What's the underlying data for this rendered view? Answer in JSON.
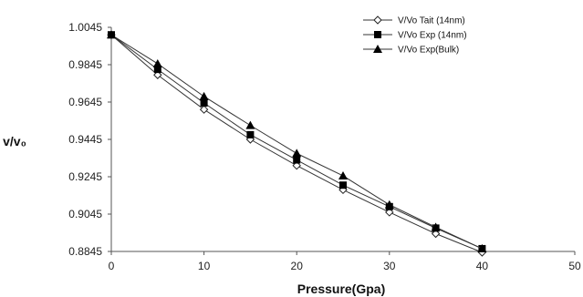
{
  "chart_data": {
    "type": "line",
    "title": "",
    "xlabel": "Pressure(Gpa)",
    "ylabel": "v/v₀",
    "xlim": [
      0,
      50
    ],
    "ylim": [
      0.8845,
      1.0045
    ],
    "xticks": [
      "0",
      "10",
      "20",
      "30",
      "40",
      "50"
    ],
    "yticks": [
      "1.0045",
      "0.9845",
      "0.9645",
      "0.9445",
      "0.9245",
      "0.9045",
      "0.8845"
    ],
    "grid": false,
    "legend_position": "top-right",
    "series": [
      {
        "name": "V/Vo Tait (14nm)",
        "marker": "diamond-open",
        "x": [
          0,
          5,
          10,
          15,
          20,
          25,
          30,
          35,
          40
        ],
        "y": [
          1.0005,
          0.979,
          0.9605,
          0.9445,
          0.9305,
          0.9175,
          0.9055,
          0.894,
          0.884
        ]
      },
      {
        "name": "V/Vo Exp (14nm)",
        "marker": "square-filled",
        "x": [
          0,
          5,
          10,
          15,
          20,
          25,
          30,
          35,
          40
        ],
        "y": [
          1.0005,
          0.982,
          0.964,
          0.947,
          0.9335,
          0.92,
          0.9085,
          0.897,
          0.886
        ]
      },
      {
        "name": "V/Vo Exp(Bulk)",
        "marker": "triangle-filled",
        "x": [
          0,
          5,
          10,
          15,
          20,
          25,
          30,
          35,
          40
        ],
        "y": [
          1.0005,
          0.985,
          0.9675,
          0.952,
          0.937,
          0.925,
          0.9095,
          0.8975,
          0.886
        ]
      }
    ]
  }
}
